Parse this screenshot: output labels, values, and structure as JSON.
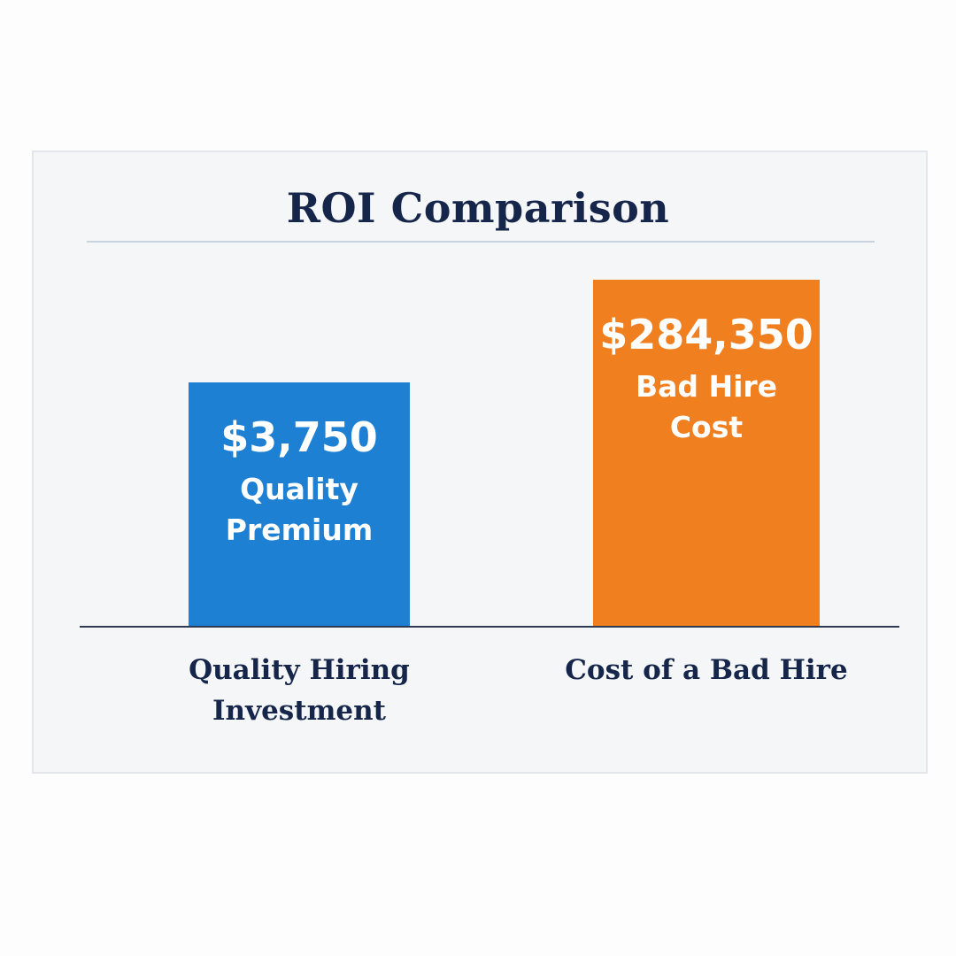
{
  "chart_data": {
    "type": "bar",
    "title": "ROI Comparison",
    "categories": [
      [
        "Quality Hiring",
        "Investment"
      ],
      [
        "Cost of a Bad Hire"
      ]
    ],
    "values": [
      3750,
      284350
    ],
    "value_labels": [
      "$3,750",
      "$284,350"
    ],
    "bar_labels": [
      [
        "Quality",
        "Premium"
      ],
      [
        "Bad Hire",
        "Cost"
      ]
    ],
    "colors": [
      "#1e80d3",
      "#f07f20"
    ],
    "xlabel": "",
    "ylabel": "",
    "grid": false,
    "legend": "none"
  }
}
